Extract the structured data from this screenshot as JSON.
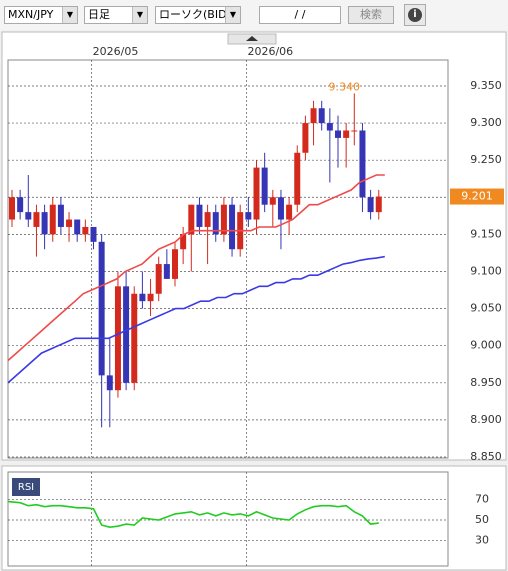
{
  "ui": {
    "pair": "MXN/JPY",
    "period": "日足",
    "chart_kind": "ローソク(BID)",
    "date": "/ /",
    "search": "検索",
    "info": "i"
  },
  "chart_data": [
    {
      "type": "candlestick",
      "categories": [
        null,
        null,
        null,
        null,
        null,
        null,
        null,
        null,
        null,
        null,
        "2026/05",
        null,
        null,
        null,
        null,
        null,
        null,
        null,
        null,
        null,
        null,
        null,
        null,
        null,
        null,
        null,
        null,
        null,
        null,
        "2026/06",
        null,
        null,
        null,
        null,
        null,
        null,
        null,
        null,
        null,
        null,
        null,
        null,
        null,
        null,
        null,
        null
      ],
      "open": [
        9.17,
        9.2,
        9.18,
        9.16,
        9.18,
        9.15,
        9.19,
        9.16,
        9.17,
        9.15,
        9.16,
        9.14,
        8.96,
        8.94,
        9.08,
        8.95,
        9.07,
        9.06,
        9.07,
        9.11,
        9.09,
        9.13,
        9.15,
        9.19,
        9.16,
        9.18,
        9.15,
        9.19,
        9.13,
        9.18,
        9.17,
        9.24,
        9.19,
        9.2,
        9.17,
        9.19,
        9.26,
        9.3,
        9.32,
        9.3,
        9.29,
        9.28,
        9.29,
        9.29,
        9.2,
        9.18
      ],
      "high": [
        9.21,
        9.21,
        9.23,
        9.19,
        9.19,
        9.2,
        9.2,
        9.18,
        9.17,
        9.17,
        9.16,
        9.15,
        9.01,
        9.1,
        9.1,
        9.08,
        9.1,
        9.09,
        9.12,
        9.13,
        9.14,
        9.16,
        9.19,
        9.2,
        9.19,
        9.19,
        9.2,
        9.2,
        9.19,
        9.2,
        9.25,
        9.26,
        9.21,
        9.21,
        9.2,
        9.27,
        9.31,
        9.33,
        9.33,
        9.32,
        9.31,
        9.3,
        9.34,
        9.3,
        9.21,
        9.21
      ],
      "low": [
        9.16,
        9.17,
        9.16,
        9.12,
        9.13,
        9.14,
        9.15,
        9.14,
        9.14,
        9.14,
        9.13,
        8.89,
        8.89,
        8.93,
        8.94,
        8.94,
        9.05,
        9.04,
        9.06,
        9.09,
        9.08,
        9.11,
        9.1,
        9.15,
        9.11,
        9.14,
        9.14,
        9.12,
        9.12,
        9.16,
        9.15,
        9.18,
        9.16,
        9.13,
        9.15,
        9.18,
        9.25,
        9.27,
        9.29,
        9.22,
        9.24,
        9.24,
        9.27,
        9.18,
        9.17,
        9.17
      ],
      "close": [
        9.2,
        9.18,
        9.17,
        9.18,
        9.15,
        9.19,
        9.16,
        9.17,
        9.15,
        9.16,
        9.14,
        8.96,
        8.94,
        9.08,
        8.95,
        9.07,
        9.06,
        9.07,
        9.11,
        9.09,
        9.13,
        9.15,
        9.19,
        9.16,
        9.18,
        9.15,
        9.19,
        9.13,
        9.18,
        9.17,
        9.24,
        9.19,
        9.2,
        9.17,
        9.19,
        9.26,
        9.3,
        9.32,
        9.3,
        9.29,
        9.28,
        9.29,
        9.29,
        9.2,
        9.18,
        9.201
      ],
      "up_color": "#d42a1e",
      "down_color": "#3535b5",
      "series": [
        {
          "color": "#f04a4a",
          "values": [
            8.98,
            8.99,
            9.0,
            9.01,
            9.02,
            9.03,
            9.04,
            9.05,
            9.06,
            9.07,
            9.075,
            9.08,
            9.085,
            9.09,
            9.1,
            9.105,
            9.11,
            9.12,
            9.13,
            9.135,
            9.14,
            9.15,
            9.155,
            9.155,
            9.155,
            9.155,
            9.155,
            9.155,
            9.155,
            9.155,
            9.16,
            9.16,
            9.16,
            9.165,
            9.17,
            9.18,
            9.19,
            9.19,
            9.195,
            9.2,
            9.205,
            9.21,
            9.22,
            9.225,
            9.23,
            9.23
          ]
        },
        {
          "color": "#3a3ae6",
          "values": [
            8.95,
            8.96,
            8.97,
            8.98,
            8.99,
            8.995,
            9.0,
            9.005,
            9.01,
            9.01,
            9.01,
            9.01,
            9.01,
            9.015,
            9.02,
            9.025,
            9.03,
            9.035,
            9.04,
            9.045,
            9.05,
            9.05,
            9.055,
            9.06,
            9.06,
            9.065,
            9.065,
            9.07,
            9.07,
            9.075,
            9.08,
            9.08,
            9.085,
            9.085,
            9.09,
            9.09,
            9.095,
            9.095,
            9.1,
            9.105,
            9.11,
            9.112,
            9.115,
            9.117,
            9.118,
            9.12
          ]
        }
      ],
      "high_label": "9.340",
      "last_label": "9.201",
      "label_color": "#f08a20",
      "ylim": [
        8.85,
        9.385
      ],
      "yticks": [
        {
          "value": 8.85,
          "label": "8.850"
        },
        {
          "value": 8.9,
          "label": "8.900"
        },
        {
          "value": 8.95,
          "label": "8.950"
        },
        {
          "value": 9.0,
          "label": "9.000"
        },
        {
          "value": 9.05,
          "label": "9.050"
        },
        {
          "value": 9.1,
          "label": "9.100"
        },
        {
          "value": 9.15,
          "label": "9.150"
        },
        {
          "value": 9.2,
          "label": "9.200"
        },
        {
          "value": 9.25,
          "label": "9.250"
        },
        {
          "value": 9.3,
          "label": "9.300"
        },
        {
          "value": 9.35,
          "label": "9.350"
        }
      ],
      "grid": true
    },
    {
      "type": "line",
      "title": "RSI",
      "color": "#22cc22",
      "values": [
        68,
        67,
        64,
        65,
        63,
        64,
        64,
        63,
        62,
        62,
        61,
        45,
        43,
        44,
        46,
        45,
        52,
        51,
        50,
        53,
        56,
        57,
        58,
        55,
        57,
        54,
        57,
        55,
        56,
        54,
        58,
        55,
        52,
        51,
        50,
        56,
        60,
        63,
        64,
        64,
        63,
        64,
        58,
        54,
        46,
        47
      ],
      "ylim": [
        5,
        97
      ],
      "yticks": [
        30,
        50,
        70
      ],
      "grid": true
    }
  ]
}
